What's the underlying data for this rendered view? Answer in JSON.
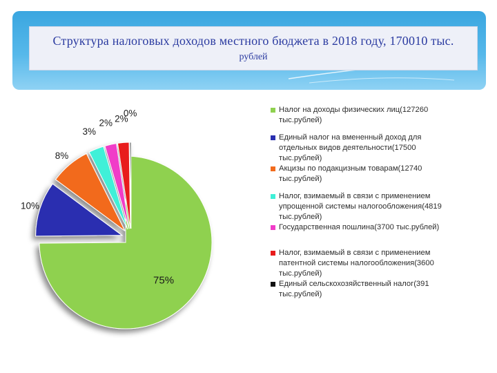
{
  "header": {
    "title_line1": "Структура налоговых доходов местного бюджета в 2018 году, 170010 тыс.",
    "title_line2": "рублей"
  },
  "chart_data": {
    "type": "pie",
    "title": "Структура налоговых доходов местного бюджета в 2018 году, 170010 тыс. рублей",
    "slices": [
      {
        "label": "Налог на доходы физических лиц(127260 тыс.рублей)",
        "value": 127260,
        "percent_label": "75%",
        "color": "#8fd14f"
      },
      {
        "label": "Единый налог на вмененный доход для отдельных видов деятельности(17500 тыс.рублей)",
        "value": 17500,
        "percent_label": "10%",
        "color": "#2a2fb0"
      },
      {
        "label": "Акцизы по подакцизным товарам(12740 тыс.рублей)",
        "value": 12740,
        "percent_label": "8%",
        "color": "#f26b1d"
      },
      {
        "label": "Налог, взимаемый в связи с применением упрощенной системы налогообложения(4819 тыс.рублей)",
        "value": 4819,
        "percent_label": "3%",
        "color": "#3ff0d8"
      },
      {
        "label": "Государственная пошлина(3700 тыс.рублей)",
        "value": 3700,
        "percent_label": "2%",
        "color": "#f03cc8"
      },
      {
        "label": "Налог, взимаемый в связи с применением патентной системы налогообложения(3600 тыс.рублей)",
        "value": 3600,
        "percent_label": "2%",
        "color": "#e81c1c"
      },
      {
        "label": "Единый сельскохозяйственный налог(391 тыс.рублей)",
        "value": 391,
        "percent_label": "0%",
        "color": "#111111"
      }
    ],
    "legend_position": "right"
  },
  "legend": {
    "items": [
      {
        "lines": [
          "Налог на доходы физических лиц(127260",
          "тыс.рублей)"
        ],
        "color": "#8fd14f",
        "gap": 10
      },
      {
        "lines": [
          "Единый налог на вмененный доход для",
          "отдельных видов деятельности(17500",
          "тыс.рублей)"
        ],
        "color": "#2a2fb0",
        "gap": 0
      },
      {
        "lines": [
          "Акцизы по подакцизным товарам(12740",
          "тыс.рублей)"
        ],
        "color": "#f26b1d",
        "gap": 10
      },
      {
        "lines": [
          "Налог, взимаемый в связи с применением",
          "упрощенной системы налогообложения(4819",
          "тыс.рублей)"
        ],
        "color": "#3ff0d8",
        "gap": 0
      },
      {
        "lines": [
          "Государственная пошлина(3700 тыс.рублей)"
        ],
        "color": "#f03cc8",
        "gap": 22
      },
      {
        "lines": [
          "Налог, взимаемый в связи с применением",
          "патентной системы налогообложения(3600",
          "тыс.рублей)"
        ],
        "color": "#e81c1c",
        "gap": 0
      },
      {
        "lines": [
          "Единый сельскохозяйственный налог(391",
          "тыс.рублей)"
        ],
        "color": "#111111",
        "gap": 0
      }
    ]
  }
}
